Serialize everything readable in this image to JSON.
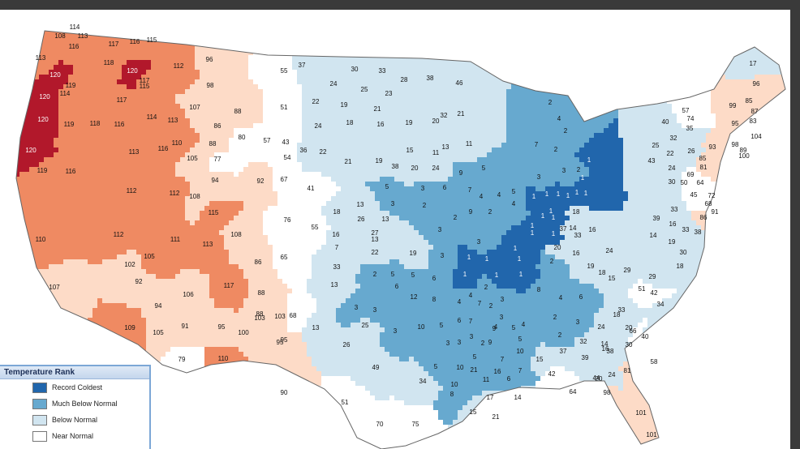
{
  "legend": {
    "title": "Temperature Rank",
    "items": [
      {
        "label": "Record Coldest",
        "color": "#2166ac"
      },
      {
        "label": "Much Below Normal",
        "color": "#67a9cf"
      },
      {
        "label": "Below Normal",
        "color": "#d1e5f0"
      },
      {
        "label": "Near Normal",
        "color": "#ffffff"
      }
    ]
  },
  "colors": {
    "record_warmest": "#b2182b",
    "much_above": "#ef8a62",
    "above": "#fddbc7",
    "near": "#ffffff",
    "below": "#d1e5f0",
    "much_below": "#67a9cf",
    "record_coldest": "#2166ac",
    "border": "#9a9a9a"
  },
  "division_ranks": [
    {
      "t": "114",
      "r": "much_above"
    },
    {
      "t": "108",
      "r": "much_above"
    },
    {
      "t": "113",
      "r": "much_above"
    },
    {
      "t": "116",
      "r": "much_above"
    },
    {
      "t": "117",
      "r": "much_above"
    },
    {
      "t": "116",
      "r": "much_above"
    },
    {
      "t": "115",
      "r": "much_above"
    },
    {
      "t": "113",
      "r": "much_above"
    },
    {
      "t": "118",
      "r": "much_above"
    },
    {
      "t": "120",
      "r": "record_warmest"
    },
    {
      "t": "120",
      "r": "record_warmest"
    },
    {
      "t": "117",
      "r": "much_above"
    },
    {
      "t": "115",
      "r": "much_above"
    },
    {
      "t": "112",
      "r": "much_above"
    },
    {
      "t": "119",
      "r": "much_above"
    },
    {
      "t": "114",
      "r": "much_above"
    },
    {
      "t": "117",
      "r": "much_above"
    },
    {
      "t": "120",
      "r": "record_warmest"
    },
    {
      "t": "120",
      "r": "record_warmest"
    },
    {
      "t": "119",
      "r": "much_above"
    },
    {
      "t": "118",
      "r": "much_above"
    },
    {
      "t": "116",
      "r": "much_above"
    },
    {
      "t": "114",
      "r": "much_above"
    },
    {
      "t": "113",
      "r": "much_above"
    },
    {
      "t": "110",
      "r": "much_above"
    },
    {
      "t": "113",
      "r": "much_above"
    },
    {
      "t": "116",
      "r": "much_above"
    },
    {
      "t": "120",
      "r": "record_warmest"
    },
    {
      "t": "119",
      "r": "much_above"
    },
    {
      "t": "116",
      "r": "much_above"
    },
    {
      "t": "112",
      "r": "much_above"
    },
    {
      "t": "112",
      "r": "much_above"
    },
    {
      "t": "108",
      "r": "above"
    },
    {
      "t": "115",
      "r": "much_above"
    },
    {
      "t": "112",
      "r": "much_above"
    },
    {
      "t": "111",
      "r": "much_above"
    },
    {
      "t": "113",
      "r": "much_above"
    },
    {
      "t": "105",
      "r": "much_above"
    },
    {
      "t": "110",
      "r": "much_above"
    },
    {
      "t": "107",
      "r": "above"
    },
    {
      "t": "92",
      "r": "above"
    },
    {
      "t": "102",
      "r": "above"
    },
    {
      "t": "106",
      "r": "above"
    },
    {
      "t": "94",
      "r": "above"
    },
    {
      "t": "105",
      "r": "above"
    },
    {
      "t": "91",
      "r": "above"
    },
    {
      "t": "109",
      "r": "much_above"
    },
    {
      "t": "117",
      "r": "much_above"
    },
    {
      "t": "88",
      "r": "above"
    },
    {
      "t": "95",
      "r": "above"
    },
    {
      "t": "100",
      "r": "above"
    },
    {
      "t": "103",
      "r": "above"
    },
    {
      "t": "110",
      "r": "much_above"
    },
    {
      "t": "95",
      "r": "above"
    },
    {
      "t": "79",
      "r": "near"
    },
    {
      "t": "96",
      "r": "above"
    },
    {
      "t": "98",
      "r": "above"
    },
    {
      "t": "107",
      "r": "above"
    },
    {
      "t": "88",
      "r": "above"
    },
    {
      "t": "55",
      "r": "near"
    },
    {
      "t": "51",
      "r": "near"
    },
    {
      "t": "86",
      "r": "above"
    },
    {
      "t": "80",
      "r": "near"
    },
    {
      "t": "88",
      "r": "above"
    },
    {
      "t": "77",
      "r": "near"
    },
    {
      "t": "57",
      "r": "near"
    },
    {
      "t": "43",
      "r": "near"
    },
    {
      "t": "54",
      "r": "near"
    },
    {
      "t": "105",
      "r": "above"
    },
    {
      "t": "94",
      "r": "above"
    },
    {
      "t": "92",
      "r": "above"
    },
    {
      "t": "67",
      "r": "near"
    },
    {
      "t": "41",
      "r": "near"
    },
    {
      "t": "76",
      "r": "near"
    },
    {
      "t": "108",
      "r": "above"
    },
    {
      "t": "86",
      "r": "above"
    },
    {
      "t": "65",
      "r": "near"
    },
    {
      "t": "55",
      "r": "near"
    },
    {
      "t": "88",
      "r": "above"
    },
    {
      "t": "103",
      "r": "above"
    },
    {
      "t": "95",
      "r": "above"
    },
    {
      "t": "68",
      "r": "near"
    },
    {
      "t": "90",
      "r": "above"
    },
    {
      "t": "51",
      "r": "near"
    },
    {
      "t": "70",
      "r": "near"
    },
    {
      "t": "75",
      "r": "near"
    },
    {
      "t": "37",
      "r": "below"
    },
    {
      "t": "30",
      "r": "below"
    },
    {
      "t": "33",
      "r": "below"
    },
    {
      "t": "24",
      "r": "below"
    },
    {
      "t": "25",
      "r": "below"
    },
    {
      "t": "23",
      "r": "below"
    },
    {
      "t": "28",
      "r": "below"
    },
    {
      "t": "38",
      "r": "below"
    },
    {
      "t": "46",
      "r": "below"
    },
    {
      "t": "22",
      "r": "below"
    },
    {
      "t": "19",
      "r": "below"
    },
    {
      "t": "21",
      "r": "below"
    },
    {
      "t": "24",
      "r": "below"
    },
    {
      "t": "18",
      "r": "below"
    },
    {
      "t": "16",
      "r": "below"
    },
    {
      "t": "19",
      "r": "below"
    },
    {
      "t": "20",
      "r": "below"
    },
    {
      "t": "32",
      "r": "below"
    },
    {
      "t": "21",
      "r": "below"
    },
    {
      "t": "36",
      "r": "below"
    },
    {
      "t": "22",
      "r": "below"
    },
    {
      "t": "21",
      "r": "below"
    },
    {
      "t": "15",
      "r": "below"
    },
    {
      "t": "11",
      "r": "below"
    },
    {
      "t": "13",
      "r": "below"
    },
    {
      "t": "11",
      "r": "below"
    },
    {
      "t": "18",
      "r": "below"
    },
    {
      "t": "13",
      "r": "below"
    },
    {
      "t": "26",
      "r": "below"
    },
    {
      "t": "13",
      "r": "below"
    },
    {
      "t": "16",
      "r": "below"
    },
    {
      "t": "7",
      "r": "below"
    },
    {
      "t": "33",
      "r": "below"
    },
    {
      "t": "27",
      "r": "below"
    },
    {
      "t": "22",
      "r": "below"
    },
    {
      "t": "19",
      "r": "below"
    },
    {
      "t": "13",
      "r": "below"
    },
    {
      "t": "13",
      "r": "below"
    },
    {
      "t": "13",
      "r": "below"
    },
    {
      "t": "26",
      "r": "below"
    },
    {
      "t": "49",
      "r": "below"
    },
    {
      "t": "34",
      "r": "below"
    },
    {
      "t": "25",
      "r": "below"
    },
    {
      "t": "15",
      "r": "below"
    },
    {
      "t": "17",
      "r": "below"
    },
    {
      "t": "14",
      "r": "below"
    },
    {
      "t": "15",
      "r": "below"
    },
    {
      "t": "21",
      "r": "below"
    },
    {
      "t": "19",
      "r": "below"
    },
    {
      "t": "38",
      "r": "below"
    },
    {
      "t": "20",
      "r": "below"
    },
    {
      "t": "24",
      "r": "below"
    },
    {
      "t": "9",
      "r": "much_below"
    },
    {
      "t": "5",
      "r": "much_below"
    },
    {
      "t": "5",
      "r": "much_below"
    },
    {
      "t": "3",
      "r": "much_below"
    },
    {
      "t": "6",
      "r": "much_below"
    },
    {
      "t": "7",
      "r": "much_below"
    },
    {
      "t": "4",
      "r": "much_below"
    },
    {
      "t": "4",
      "r": "much_below"
    },
    {
      "t": "5",
      "r": "much_below"
    },
    {
      "t": "4",
      "r": "much_below"
    },
    {
      "t": "3",
      "r": "much_below"
    },
    {
      "t": "2",
      "r": "much_below"
    },
    {
      "t": "3",
      "r": "much_below"
    },
    {
      "t": "2",
      "r": "much_below"
    },
    {
      "t": "9",
      "r": "much_below"
    },
    {
      "t": "2",
      "r": "much_below"
    },
    {
      "t": "3",
      "r": "much_below"
    },
    {
      "t": "3",
      "r": "much_below"
    },
    {
      "t": "2",
      "r": "much_below"
    },
    {
      "t": "5",
      "r": "much_below"
    },
    {
      "t": "5",
      "r": "much_below"
    },
    {
      "t": "6",
      "r": "much_below"
    },
    {
      "t": "3",
      "r": "much_below"
    },
    {
      "t": "3",
      "r": "much_below"
    },
    {
      "t": "6",
      "r": "much_below"
    },
    {
      "t": "12",
      "r": "much_below"
    },
    {
      "t": "8",
      "r": "much_below"
    },
    {
      "t": "3",
      "r": "much_below"
    },
    {
      "t": "10",
      "r": "much_below"
    },
    {
      "t": "5",
      "r": "much_below"
    },
    {
      "t": "3",
      "r": "much_below"
    },
    {
      "t": "5",
      "r": "much_below"
    },
    {
      "t": "10",
      "r": "much_below"
    },
    {
      "t": "21",
      "r": "much_below"
    },
    {
      "t": "11",
      "r": "much_below"
    },
    {
      "t": "16",
      "r": "much_below"
    },
    {
      "t": "8",
      "r": "much_below"
    },
    {
      "t": "10",
      "r": "much_below"
    },
    {
      "t": "6",
      "r": "much_below"
    },
    {
      "t": "7",
      "r": "much_below"
    },
    {
      "t": "9",
      "r": "much_below"
    },
    {
      "t": "7",
      "r": "much_below"
    },
    {
      "t": "5",
      "r": "much_below"
    },
    {
      "t": "4",
      "r": "much_below"
    },
    {
      "t": "2",
      "r": "much_below"
    },
    {
      "t": "3",
      "r": "much_below"
    },
    {
      "t": "2",
      "r": "much_below"
    },
    {
      "t": "7",
      "r": "much_below"
    },
    {
      "t": "4",
      "r": "much_below"
    },
    {
      "t": "2",
      "r": "much_below"
    },
    {
      "t": "2",
      "r": "much_below"
    },
    {
      "t": "2",
      "r": "much_below"
    },
    {
      "t": "3",
      "r": "much_below"
    },
    {
      "t": "3",
      "r": "much_below"
    },
    {
      "t": "2",
      "r": "much_below"
    },
    {
      "t": "1",
      "r": "record_coldest"
    },
    {
      "t": "1",
      "r": "record_coldest"
    },
    {
      "t": "1",
      "r": "record_coldest"
    },
    {
      "t": "1",
      "r": "record_coldest"
    },
    {
      "t": "1",
      "r": "record_coldest"
    },
    {
      "t": "1",
      "r": "record_coldest"
    },
    {
      "t": "1",
      "r": "record_coldest"
    },
    {
      "t": "1",
      "r": "record_coldest"
    },
    {
      "t": "1",
      "r": "record_coldest"
    },
    {
      "t": "1",
      "r": "record_coldest"
    },
    {
      "t": "1",
      "r": "record_coldest"
    },
    {
      "t": "1",
      "r": "record_coldest"
    },
    {
      "t": "1",
      "r": "record_coldest"
    },
    {
      "t": "1",
      "r": "record_coldest"
    },
    {
      "t": "1",
      "r": "record_coldest"
    },
    {
      "t": "1",
      "r": "record_coldest"
    },
    {
      "t": "1",
      "r": "record_coldest"
    },
    {
      "t": "1",
      "r": "record_coldest"
    },
    {
      "t": "1",
      "r": "record_coldest"
    },
    {
      "t": "1",
      "r": "record_coldest"
    },
    {
      "t": "1",
      "r": "record_coldest"
    },
    {
      "t": "2",
      "r": "much_below"
    },
    {
      "t": "3",
      "r": "much_below"
    },
    {
      "t": "4",
      "r": "much_below"
    },
    {
      "t": "4",
      "r": "much_below"
    },
    {
      "t": "7",
      "r": "much_below"
    },
    {
      "t": "2",
      "r": "much_below"
    },
    {
      "t": "3",
      "r": "much_below"
    },
    {
      "t": "6",
      "r": "much_below"
    },
    {
      "t": "7",
      "r": "much_below"
    },
    {
      "t": "4",
      "r": "much_below"
    },
    {
      "t": "3",
      "r": "much_below"
    },
    {
      "t": "3",
      "r": "much_below"
    },
    {
      "t": "2",
      "r": "much_below"
    },
    {
      "t": "9",
      "r": "much_below"
    },
    {
      "t": "5",
      "r": "much_below"
    },
    {
      "t": "5",
      "r": "much_below"
    },
    {
      "t": "10",
      "r": "much_below"
    },
    {
      "t": "8",
      "r": "much_below"
    },
    {
      "t": "4",
      "r": "much_below"
    },
    {
      "t": "6",
      "r": "much_below"
    },
    {
      "t": "2",
      "r": "much_below"
    },
    {
      "t": "16",
      "r": "below"
    },
    {
      "t": "18",
      "r": "below"
    },
    {
      "t": "14",
      "r": "below"
    },
    {
      "t": "16",
      "r": "below"
    },
    {
      "t": "19",
      "r": "below"
    },
    {
      "t": "18",
      "r": "below"
    },
    {
      "t": "15",
      "r": "below"
    },
    {
      "t": "24",
      "r": "below"
    },
    {
      "t": "29",
      "r": "below"
    },
    {
      "t": "33",
      "r": "below"
    },
    {
      "t": "20",
      "r": "below"
    },
    {
      "t": "37",
      "r": "below"
    },
    {
      "t": "32",
      "r": "below"
    },
    {
      "t": "37",
      "r": "below"
    },
    {
      "t": "39",
      "r": "below"
    },
    {
      "t": "38",
      "r": "below"
    },
    {
      "t": "44",
      "r": "below"
    },
    {
      "t": "33",
      "r": "below"
    },
    {
      "t": "20",
      "r": "below"
    },
    {
      "t": "30",
      "r": "below"
    },
    {
      "t": "40",
      "r": "below"
    },
    {
      "t": "58",
      "r": "near"
    },
    {
      "t": "66",
      "r": "near"
    },
    {
      "t": "24",
      "r": "below"
    },
    {
      "t": "18",
      "r": "below"
    },
    {
      "t": "14",
      "r": "below"
    },
    {
      "t": "16",
      "r": "below"
    },
    {
      "t": "24",
      "r": "below"
    },
    {
      "t": "42",
      "r": "near"
    },
    {
      "t": "64",
      "r": "near"
    },
    {
      "t": "20",
      "r": "below"
    },
    {
      "t": "81",
      "r": "above"
    },
    {
      "t": "98",
      "r": "above"
    },
    {
      "t": "101",
      "r": "above"
    },
    {
      "t": "101",
      "r": "above"
    },
    {
      "t": "40",
      "r": "below"
    },
    {
      "t": "57",
      "r": "near"
    },
    {
      "t": "74",
      "r": "near"
    },
    {
      "t": "35",
      "r": "below"
    },
    {
      "t": "32",
      "r": "below"
    },
    {
      "t": "25",
      "r": "below"
    },
    {
      "t": "22",
      "r": "below"
    },
    {
      "t": "26",
      "r": "below"
    },
    {
      "t": "43",
      "r": "below"
    },
    {
      "t": "24",
      "r": "below"
    },
    {
      "t": "30",
      "r": "below"
    },
    {
      "t": "50",
      "r": "near"
    },
    {
      "t": "45",
      "r": "near"
    },
    {
      "t": "39",
      "r": "below"
    },
    {
      "t": "33",
      "r": "below"
    },
    {
      "t": "16",
      "r": "below"
    },
    {
      "t": "14",
      "r": "below"
    },
    {
      "t": "19",
      "r": "below"
    },
    {
      "t": "17",
      "r": "below"
    },
    {
      "t": "96",
      "r": "above"
    },
    {
      "t": "99",
      "r": "above"
    },
    {
      "t": "85",
      "r": "above"
    },
    {
      "t": "87",
      "r": "above"
    },
    {
      "t": "95",
      "r": "above"
    },
    {
      "t": "83",
      "r": "above"
    },
    {
      "t": "98",
      "r": "above"
    },
    {
      "t": "100",
      "r": "above"
    },
    {
      "t": "104",
      "r": "above"
    },
    {
      "t": "89",
      "r": "above"
    },
    {
      "t": "93",
      "r": "above"
    },
    {
      "t": "85",
      "r": "above"
    },
    {
      "t": "81",
      "r": "above"
    },
    {
      "t": "69",
      "r": "near"
    },
    {
      "t": "64",
      "r": "near"
    },
    {
      "t": "68",
      "r": "near"
    },
    {
      "t": "72",
      "r": "near"
    },
    {
      "t": "91",
      "r": "above"
    },
    {
      "t": "86",
      "r": "above"
    },
    {
      "t": "33",
      "r": "below"
    },
    {
      "t": "38",
      "r": "below"
    },
    {
      "t": "30",
      "r": "below"
    },
    {
      "t": "18",
      "r": "below"
    },
    {
      "t": "29",
      "r": "below"
    },
    {
      "t": "51",
      "r": "near"
    },
    {
      "t": "42",
      "r": "near"
    },
    {
      "t": "34",
      "r": "below"
    }
  ]
}
